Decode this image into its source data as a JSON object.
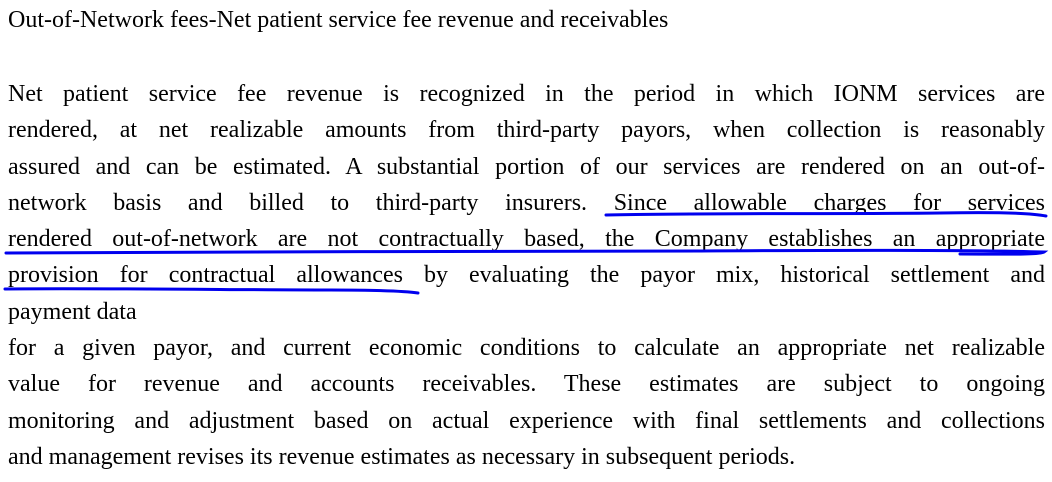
{
  "document": {
    "title": "Out-of-Network fees-Net patient service fee revenue and receivables",
    "lines": [
      {
        "text": "Net patient service fee revenue is recognized in the period in which IONM services are",
        "justify": true
      },
      {
        "text": "rendered, at net realizable amounts from third-party payors, when collection is reasonably",
        "justify": true
      },
      {
        "text": "assured and can be estimated. A substantial portion of our services are rendered on an out-of-",
        "justify": true
      },
      {
        "text": "network basis and billed to third-party insurers.  Since allowable charges for services",
        "justify": true
      },
      {
        "text": "rendered out-of-network are not contractually based, the Company establishes an appropriate",
        "justify": true
      },
      {
        "text": "provision for contractual allowances by evaluating the payor mix, historical settlement and",
        "justify": true
      },
      {
        "text": "payment data",
        "justify": false
      },
      {
        "text": "for a given payor, and current economic conditions to calculate an appropriate net realizable",
        "justify": true
      },
      {
        "text": "value for revenue and accounts receivables. These estimates are subject to ongoing",
        "justify": true
      },
      {
        "text": "monitoring and adjustment based on actual experience with final settlements and collections",
        "justify": true
      },
      {
        "text": "and management revises its revenue estimates as necessary in subsequent periods.",
        "justify": false
      }
    ]
  },
  "annotation": {
    "color": "#0000ee"
  }
}
